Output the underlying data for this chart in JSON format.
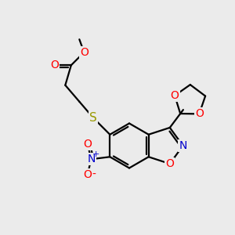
{
  "background_color": "#ebebeb",
  "atom_colors": {
    "O": "#ff0000",
    "N": "#0000cc",
    "S": "#999900",
    "C": "#000000"
  },
  "bond_color": "#000000",
  "bond_width": 1.6,
  "font_size": 10
}
